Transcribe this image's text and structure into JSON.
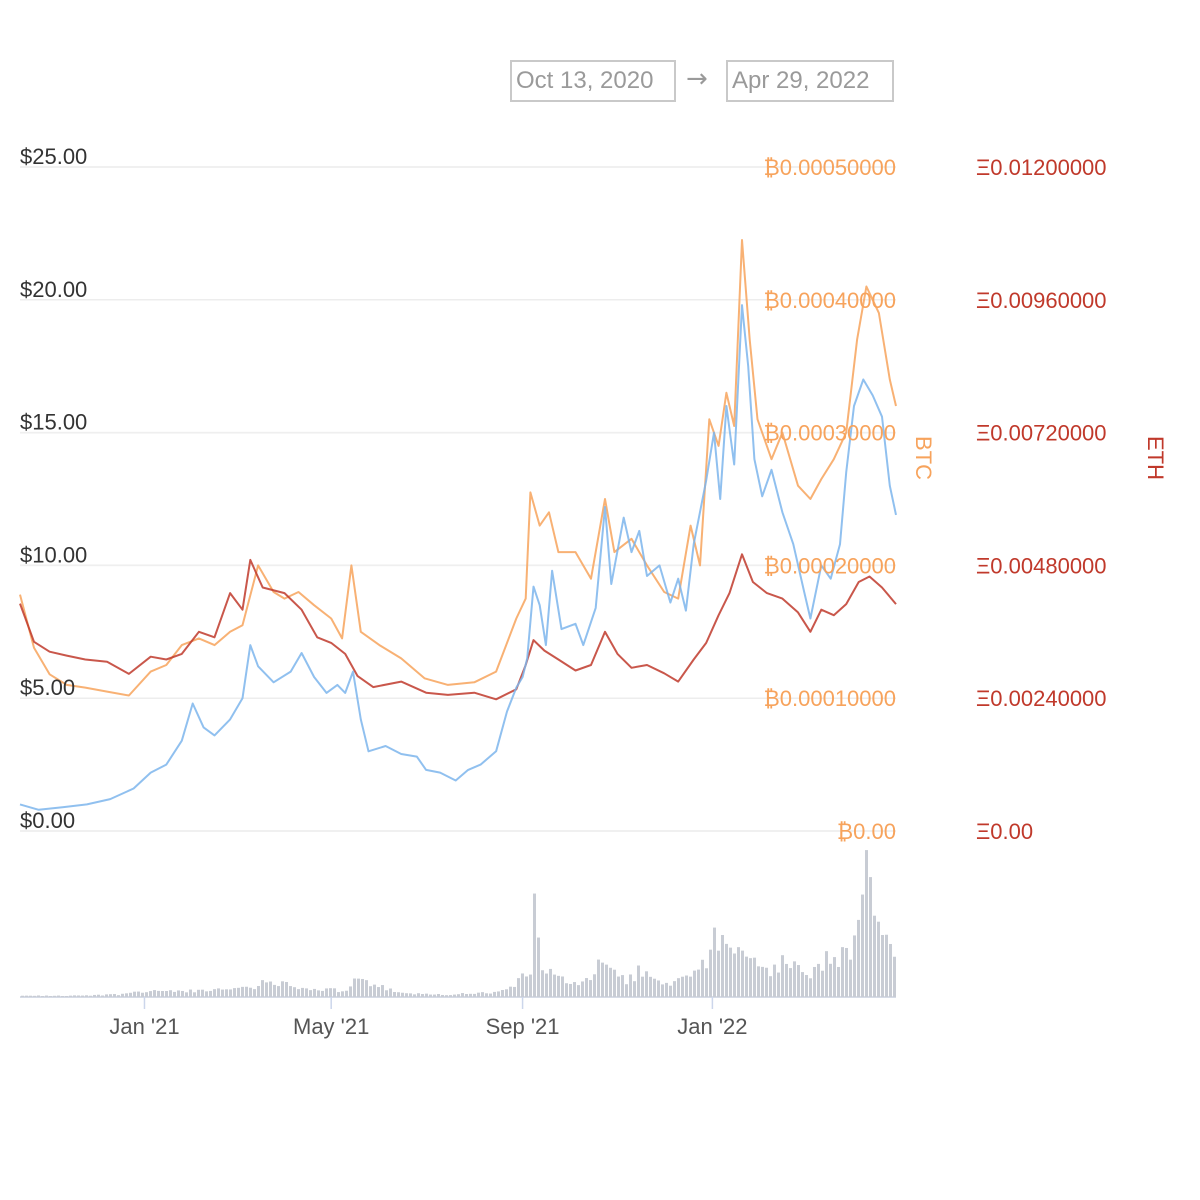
{
  "date_range": {
    "from": "Oct 13, 2020",
    "arrow": "→",
    "to": "Apr 29, 2022"
  },
  "colors": {
    "usd": "#7cb5ec",
    "btc": "#f7a35c",
    "eth": "#c0392b",
    "volume": "#c8ccd4",
    "grid": "#e6e6e6",
    "axis_text": "#333333"
  },
  "chart_data": {
    "type": "line",
    "x_range": [
      "2020-10-13",
      "2022-04-29"
    ],
    "x_ticks": [
      {
        "label": "Jan '21",
        "date": "2021-01-01"
      },
      {
        "label": "May '21",
        "date": "2021-05-01"
      },
      {
        "label": "Sep '21",
        "date": "2021-09-01"
      },
      {
        "label": "Jan '22",
        "date": "2022-01-01"
      }
    ],
    "axes": {
      "usd": {
        "ticks": [
          "$0.00",
          "$5.00",
          "$10.00",
          "$15.00",
          "$20.00",
          "$25.00"
        ],
        "ylim": [
          0,
          25
        ]
      },
      "btc": {
        "title": "BTC",
        "ticks": [
          "₿0.00",
          "₿0.00010000",
          "₿0.00020000",
          "₿0.00030000",
          "₿0.00040000",
          "₿0.00050000"
        ],
        "ylim": [
          0,
          0.0005
        ]
      },
      "eth": {
        "title": "ETH",
        "ticks": [
          "Ξ0.00",
          "Ξ0.00240000",
          "Ξ0.00480000",
          "Ξ0.00720000",
          "Ξ0.00960000",
          "Ξ0.01200000"
        ],
        "ylim": [
          0,
          0.012
        ]
      }
    },
    "series": [
      {
        "axis": "usd",
        "points": [
          [
            "2020-10-13",
            1.0
          ],
          [
            "2020-10-25",
            0.8
          ],
          [
            "2020-11-10",
            0.9
          ],
          [
            "2020-11-25",
            1.0
          ],
          [
            "2020-12-10",
            1.2
          ],
          [
            "2020-12-25",
            1.6
          ],
          [
            "2021-01-05",
            2.2
          ],
          [
            "2021-01-15",
            2.5
          ],
          [
            "2021-01-25",
            3.4
          ],
          [
            "2021-02-01",
            4.8
          ],
          [
            "2021-02-08",
            3.9
          ],
          [
            "2021-02-15",
            3.6
          ],
          [
            "2021-02-25",
            4.2
          ],
          [
            "2021-03-05",
            5.0
          ],
          [
            "2021-03-10",
            7.0
          ],
          [
            "2021-03-15",
            6.2
          ],
          [
            "2021-03-25",
            5.6
          ],
          [
            "2021-04-05",
            6.0
          ],
          [
            "2021-04-12",
            6.7
          ],
          [
            "2021-04-20",
            5.8
          ],
          [
            "2021-04-28",
            5.2
          ],
          [
            "2021-05-05",
            5.5
          ],
          [
            "2021-05-10",
            5.2
          ],
          [
            "2021-05-15",
            6.0
          ],
          [
            "2021-05-20",
            4.2
          ],
          [
            "2021-05-25",
            3.0
          ],
          [
            "2021-06-05",
            3.2
          ],
          [
            "2021-06-15",
            2.9
          ],
          [
            "2021-06-25",
            2.8
          ],
          [
            "2021-07-01",
            2.3
          ],
          [
            "2021-07-10",
            2.2
          ],
          [
            "2021-07-20",
            1.9
          ],
          [
            "2021-07-28",
            2.3
          ],
          [
            "2021-08-05",
            2.5
          ],
          [
            "2021-08-15",
            3.0
          ],
          [
            "2021-08-22",
            4.5
          ],
          [
            "2021-08-28",
            5.4
          ],
          [
            "2021-09-01",
            5.8
          ],
          [
            "2021-09-04",
            6.5
          ],
          [
            "2021-09-08",
            9.2
          ],
          [
            "2021-09-12",
            8.5
          ],
          [
            "2021-09-16",
            7.0
          ],
          [
            "2021-09-20",
            9.8
          ],
          [
            "2021-09-26",
            7.6
          ],
          [
            "2021-10-05",
            7.8
          ],
          [
            "2021-10-10",
            7.0
          ],
          [
            "2021-10-18",
            8.4
          ],
          [
            "2021-10-24",
            12.2
          ],
          [
            "2021-10-28",
            9.3
          ],
          [
            "2021-11-05",
            11.8
          ],
          [
            "2021-11-10",
            10.5
          ],
          [
            "2021-11-15",
            11.3
          ],
          [
            "2021-11-20",
            9.6
          ],
          [
            "2021-11-28",
            10.0
          ],
          [
            "2021-12-05",
            8.6
          ],
          [
            "2021-12-10",
            9.5
          ],
          [
            "2021-12-15",
            8.3
          ],
          [
            "2021-12-20",
            10.8
          ],
          [
            "2021-12-28",
            13.2
          ],
          [
            "2022-01-02",
            15.0
          ],
          [
            "2022-01-06",
            12.5
          ],
          [
            "2022-01-10",
            16.0
          ],
          [
            "2022-01-15",
            13.8
          ],
          [
            "2022-01-20",
            19.8
          ],
          [
            "2022-01-24",
            17.5
          ],
          [
            "2022-01-28",
            14.0
          ],
          [
            "2022-02-02",
            12.6
          ],
          [
            "2022-02-08",
            13.6
          ],
          [
            "2022-02-15",
            12.0
          ],
          [
            "2022-02-22",
            10.8
          ],
          [
            "2022-03-01",
            9.0
          ],
          [
            "2022-03-05",
            8.0
          ],
          [
            "2022-03-12",
            10.0
          ],
          [
            "2022-03-18",
            9.5
          ],
          [
            "2022-03-24",
            10.8
          ],
          [
            "2022-03-28",
            13.5
          ],
          [
            "2022-04-02",
            16.0
          ],
          [
            "2022-04-08",
            17.0
          ],
          [
            "2022-04-14",
            16.4
          ],
          [
            "2022-04-20",
            15.6
          ],
          [
            "2022-04-25",
            13.0
          ],
          [
            "2022-04-29",
            11.9
          ]
        ]
      },
      {
        "axis": "btc",
        "points": [
          [
            "2020-10-13",
            0.000178
          ],
          [
            "2020-10-22",
            0.000138
          ],
          [
            "2020-11-01",
            0.000118
          ],
          [
            "2020-11-12",
            0.00011
          ],
          [
            "2020-11-24",
            0.000108
          ],
          [
            "2020-12-08",
            0.000105
          ],
          [
            "2020-12-22",
            0.000102
          ],
          [
            "2021-01-05",
            0.00012
          ],
          [
            "2021-01-15",
            0.000125
          ],
          [
            "2021-01-25",
            0.00014
          ],
          [
            "2021-02-05",
            0.000145
          ],
          [
            "2021-02-15",
            0.00014
          ],
          [
            "2021-02-25",
            0.00015
          ],
          [
            "2021-03-05",
            0.000155
          ],
          [
            "2021-03-15",
            0.0002
          ],
          [
            "2021-03-25",
            0.00018
          ],
          [
            "2021-04-01",
            0.000175
          ],
          [
            "2021-04-10",
            0.00018
          ],
          [
            "2021-04-20",
            0.00017
          ],
          [
            "2021-05-01",
            0.00016
          ],
          [
            "2021-05-08",
            0.000145
          ],
          [
            "2021-05-14",
            0.0002
          ],
          [
            "2021-05-20",
            0.00015
          ],
          [
            "2021-06-01",
            0.00014
          ],
          [
            "2021-06-15",
            0.00013
          ],
          [
            "2021-06-30",
            0.000115
          ],
          [
            "2021-07-15",
            0.00011
          ],
          [
            "2021-08-01",
            0.000112
          ],
          [
            "2021-08-15",
            0.00012
          ],
          [
            "2021-08-28",
            0.00016
          ],
          [
            "2021-09-03",
            0.000175
          ],
          [
            "2021-09-06",
            0.000255
          ],
          [
            "2021-09-12",
            0.00023
          ],
          [
            "2021-09-18",
            0.00024
          ],
          [
            "2021-09-24",
            0.00021
          ],
          [
            "2021-10-05",
            0.00021
          ],
          [
            "2021-10-15",
            0.00019
          ],
          [
            "2021-10-24",
            0.00025
          ],
          [
            "2021-10-30",
            0.00021
          ],
          [
            "2021-11-10",
            0.00022
          ],
          [
            "2021-11-20",
            0.0002
          ],
          [
            "2021-12-01",
            0.00018
          ],
          [
            "2021-12-10",
            0.000175
          ],
          [
            "2021-12-18",
            0.00023
          ],
          [
            "2021-12-24",
            0.0002
          ],
          [
            "2021-12-30",
            0.00031
          ],
          [
            "2022-01-05",
            0.00029
          ],
          [
            "2022-01-10",
            0.00033
          ],
          [
            "2022-01-15",
            0.000305
          ],
          [
            "2022-01-20",
            0.000445
          ],
          [
            "2022-01-25",
            0.00037
          ],
          [
            "2022-01-30",
            0.00031
          ],
          [
            "2022-02-08",
            0.00028
          ],
          [
            "2022-02-15",
            0.0003
          ],
          [
            "2022-02-25",
            0.00026
          ],
          [
            "2022-03-05",
            0.00025
          ],
          [
            "2022-03-12",
            0.000265
          ],
          [
            "2022-03-20",
            0.00028
          ],
          [
            "2022-03-28",
            0.0003
          ],
          [
            "2022-04-04",
            0.00037
          ],
          [
            "2022-04-10",
            0.00041
          ],
          [
            "2022-04-18",
            0.00039
          ],
          [
            "2022-04-25",
            0.00034
          ],
          [
            "2022-04-29",
            0.00032
          ]
        ]
      },
      {
        "axis": "eth",
        "points": [
          [
            "2020-10-13",
            0.00411
          ],
          [
            "2020-10-22",
            0.00342
          ],
          [
            "2020-11-01",
            0.00324
          ],
          [
            "2020-11-12",
            0.00317
          ],
          [
            "2020-11-24",
            0.0031
          ],
          [
            "2020-12-08",
            0.00306
          ],
          [
            "2020-12-22",
            0.00284
          ],
          [
            "2021-01-05",
            0.00315
          ],
          [
            "2021-01-15",
            0.0031
          ],
          [
            "2021-01-25",
            0.0032
          ],
          [
            "2021-02-05",
            0.0036
          ],
          [
            "2021-02-15",
            0.0035
          ],
          [
            "2021-02-25",
            0.0043
          ],
          [
            "2021-03-05",
            0.004
          ],
          [
            "2021-03-10",
            0.0049
          ],
          [
            "2021-03-18",
            0.0044
          ],
          [
            "2021-04-01",
            0.0043
          ],
          [
            "2021-04-12",
            0.004
          ],
          [
            "2021-04-22",
            0.0035
          ],
          [
            "2021-05-01",
            0.0034
          ],
          [
            "2021-05-10",
            0.0032
          ],
          [
            "2021-05-18",
            0.0028
          ],
          [
            "2021-05-28",
            0.0026
          ],
          [
            "2021-06-15",
            0.0027
          ],
          [
            "2021-07-01",
            0.0025
          ],
          [
            "2021-07-15",
            0.00246
          ],
          [
            "2021-08-01",
            0.0025
          ],
          [
            "2021-08-15",
            0.00238
          ],
          [
            "2021-08-28",
            0.00256
          ],
          [
            "2021-09-03",
            0.003
          ],
          [
            "2021-09-08",
            0.00345
          ],
          [
            "2021-09-15",
            0.00326
          ],
          [
            "2021-09-24",
            0.0031
          ],
          [
            "2021-10-05",
            0.0029
          ],
          [
            "2021-10-15",
            0.003
          ],
          [
            "2021-10-24",
            0.0036
          ],
          [
            "2021-11-01",
            0.0032
          ],
          [
            "2021-11-10",
            0.00295
          ],
          [
            "2021-11-20",
            0.003
          ],
          [
            "2021-12-01",
            0.00285
          ],
          [
            "2021-12-10",
            0.0027
          ],
          [
            "2021-12-20",
            0.0031
          ],
          [
            "2021-12-28",
            0.0034
          ],
          [
            "2022-01-05",
            0.0039
          ],
          [
            "2022-01-12",
            0.0043
          ],
          [
            "2022-01-20",
            0.005
          ],
          [
            "2022-01-27",
            0.0045
          ],
          [
            "2022-02-05",
            0.0043
          ],
          [
            "2022-02-15",
            0.0042
          ],
          [
            "2022-02-25",
            0.00395
          ],
          [
            "2022-03-05",
            0.0036
          ],
          [
            "2022-03-12",
            0.004
          ],
          [
            "2022-03-20",
            0.0039
          ],
          [
            "2022-03-28",
            0.0041
          ],
          [
            "2022-04-05",
            0.0045
          ],
          [
            "2022-04-12",
            0.0046
          ],
          [
            "2022-04-20",
            0.0044
          ],
          [
            "2022-04-29",
            0.0041
          ]
        ]
      }
    ],
    "volume": {
      "relative": true,
      "points": [
        [
          "2020-10-13",
          0.01
        ],
        [
          "2020-11-15",
          0.01
        ],
        [
          "2020-12-15",
          0.02
        ],
        [
          "2021-01-05",
          0.05
        ],
        [
          "2021-02-10",
          0.05
        ],
        [
          "2021-03-10",
          0.08
        ],
        [
          "2021-03-20",
          0.12
        ],
        [
          "2021-04-20",
          0.07
        ],
        [
          "2021-05-10",
          0.05
        ],
        [
          "2021-05-15",
          0.14
        ],
        [
          "2021-06-15",
          0.03
        ],
        [
          "2021-07-15",
          0.02
        ],
        [
          "2021-08-15",
          0.04
        ],
        [
          "2021-08-28",
          0.12
        ],
        [
          "2021-09-05",
          0.22
        ],
        [
          "2021-09-08",
          0.72
        ],
        [
          "2021-09-12",
          0.25
        ],
        [
          "2021-09-20",
          0.18
        ],
        [
          "2021-10-05",
          0.1
        ],
        [
          "2021-10-22",
          0.28
        ],
        [
          "2021-11-05",
          0.12
        ],
        [
          "2021-11-15",
          0.22
        ],
        [
          "2021-12-01",
          0.1
        ],
        [
          "2021-12-20",
          0.2
        ],
        [
          "2021-12-28",
          0.32
        ],
        [
          "2022-01-05",
          0.55
        ],
        [
          "2022-01-12",
          0.42
        ],
        [
          "2022-01-20",
          0.4
        ],
        [
          "2022-02-01",
          0.2
        ],
        [
          "2022-02-15",
          0.28
        ],
        [
          "2022-03-01",
          0.18
        ],
        [
          "2022-03-15",
          0.3
        ],
        [
          "2022-03-28",
          0.35
        ],
        [
          "2022-04-05",
          0.55
        ],
        [
          "2022-04-08",
          1.0
        ],
        [
          "2022-04-14",
          0.6
        ],
        [
          "2022-04-22",
          0.45
        ],
        [
          "2022-04-29",
          0.3
        ]
      ]
    }
  }
}
